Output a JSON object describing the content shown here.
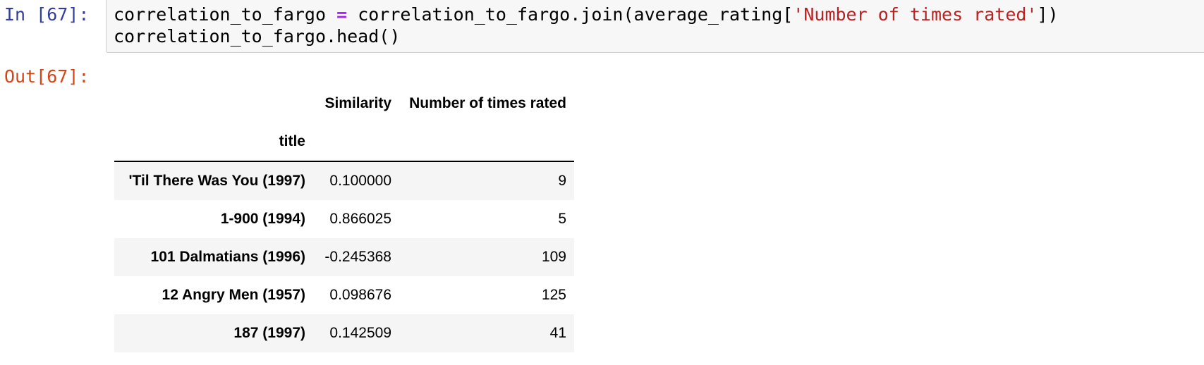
{
  "cell": {
    "in_prompt": "In [67]:",
    "out_prompt": "Out[67]:",
    "code": {
      "line1_part1": "correlation_to_fargo ",
      "line1_op": "=",
      "line1_part2": " correlation_to_fargo.join(average_rating[",
      "line1_str": "'Number of times rated'",
      "line1_part3": "])",
      "line2": "correlation_to_fargo.head()"
    }
  },
  "dataframe": {
    "columns": [
      "Similarity",
      "Number of times rated"
    ],
    "index_name": "title",
    "rows": [
      {
        "title": "'Til There Was You (1997)",
        "similarity": "0.100000",
        "num_rated": "9"
      },
      {
        "title": "1-900 (1994)",
        "similarity": "0.866025",
        "num_rated": "5"
      },
      {
        "title": "101 Dalmatians (1996)",
        "similarity": "-0.245368",
        "num_rated": "109"
      },
      {
        "title": "12 Angry Men (1957)",
        "similarity": "0.098676",
        "num_rated": "125"
      },
      {
        "title": "187 (1997)",
        "similarity": "0.142509",
        "num_rated": "41"
      }
    ]
  },
  "colors": {
    "in_prompt": "#303f9f",
    "out_prompt": "#d84315",
    "operator": "#aa22ff",
    "string": "#ba2121",
    "cell_background": "#f7f7f7",
    "row_stripe": "#f5f5f5"
  }
}
